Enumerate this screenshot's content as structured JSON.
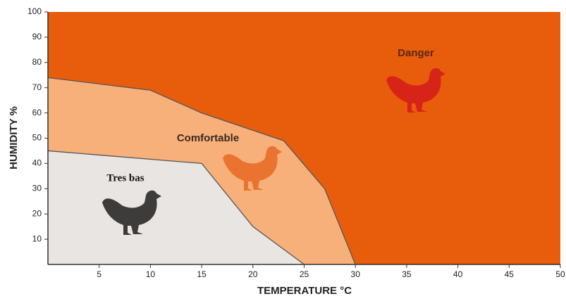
{
  "chart_data": {
    "type": "region",
    "x_label": "TEMPERATURE °C",
    "y_label": "HUMIDITY %",
    "xlim": [
      0,
      50
    ],
    "ylim": [
      0,
      100
    ],
    "xticks": [
      5,
      10,
      15,
      20,
      25,
      30,
      35,
      40,
      45,
      50
    ],
    "yticks": [
      10,
      20,
      30,
      40,
      50,
      60,
      70,
      80,
      90,
      100
    ],
    "series": [
      {
        "name": "Danger",
        "color": "#e85d0c",
        "x": [
          0,
          50
        ],
        "values": [
          100,
          100
        ]
      },
      {
        "name": "Comfortable",
        "color": "#f7b07a",
        "x": [
          0,
          10,
          15,
          23,
          27,
          30
        ],
        "values": [
          74,
          69,
          60,
          49,
          30,
          0
        ]
      },
      {
        "name": "Tres bas",
        "color": "#e9e5e3",
        "x": [
          0,
          15,
          20,
          25
        ],
        "values": [
          45,
          40,
          15,
          0
        ]
      }
    ]
  }
}
